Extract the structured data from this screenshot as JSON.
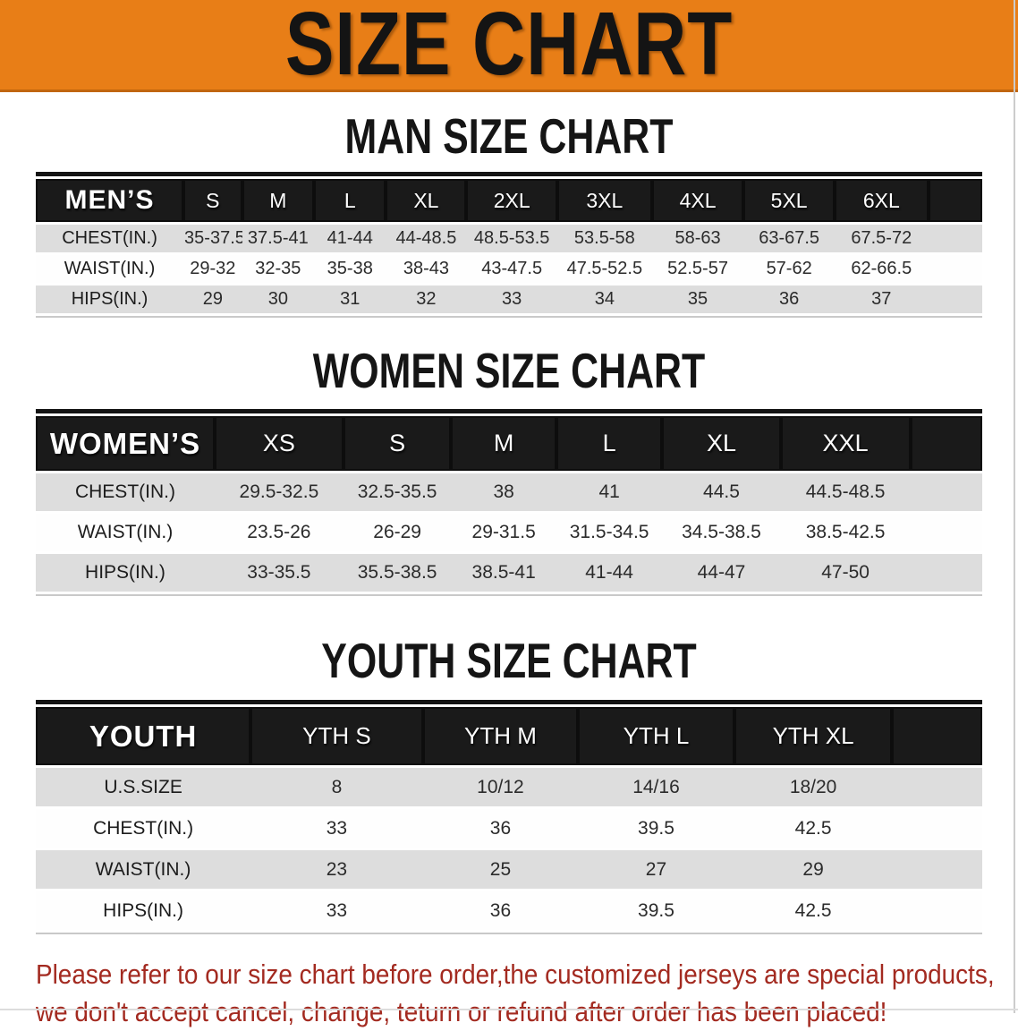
{
  "banner": {
    "title": "SIZE CHART"
  },
  "colors": {
    "banner_orange": "#E87E17",
    "header_black": "#1A1A1A",
    "row_gray": "#DDDDDD",
    "notice_red": "#A32A20"
  },
  "sections": [
    {
      "heading": "MAN SIZE CHART",
      "table": {
        "label": "MEN’S",
        "sizes": [
          "S",
          "M",
          "L",
          "XL",
          "2XL",
          "3XL",
          "4XL",
          "5XL",
          "6XL"
        ],
        "rows": [
          {
            "label": "CHEST(IN.)",
            "values": [
              "35-37.5",
              "37.5-41",
              "41-44",
              "44-48.5",
              "48.5-53.5",
              "53.5-58",
              "58-63",
              "63-67.5",
              "67.5-72"
            ]
          },
          {
            "label": "WAIST(IN.)",
            "values": [
              "29-32",
              "32-35",
              "35-38",
              "38-43",
              "43-47.5",
              "47.5-52.5",
              "52.5-57",
              "57-62",
              "62-66.5"
            ]
          },
          {
            "label": "HIPS(IN.)",
            "values": [
              "29",
              "30",
              "31",
              "32",
              "33",
              "34",
              "35",
              "36",
              "37"
            ]
          }
        ]
      }
    },
    {
      "heading": "WOMEN SIZE CHART",
      "table": {
        "label": "WOMEN’S",
        "sizes": [
          "XS",
          "S",
          "M",
          "L",
          "XL",
          "XXL"
        ],
        "rows": [
          {
            "label": "CHEST(IN.)",
            "values": [
              "29.5-32.5",
              "32.5-35.5",
              "38",
              "41",
              "44.5",
              "44.5-48.5"
            ]
          },
          {
            "label": "WAIST(IN.)",
            "values": [
              "23.5-26",
              "26-29",
              "29-31.5",
              "31.5-34.5",
              "34.5-38.5",
              "38.5-42.5"
            ]
          },
          {
            "label": "HIPS(IN.)",
            "values": [
              "33-35.5",
              "35.5-38.5",
              "38.5-41",
              "41-44",
              "44-47",
              "47-50"
            ]
          }
        ]
      }
    },
    {
      "heading": "YOUTH SIZE CHART",
      "table": {
        "label": "YOUTH",
        "sizes": [
          "YTH S",
          "YTH M",
          "YTH L",
          "YTH XL"
        ],
        "rows": [
          {
            "label": "U.S.SIZE",
            "values": [
              "8",
              "10/12",
              "14/16",
              "18/20"
            ]
          },
          {
            "label": "CHEST(IN.)",
            "values": [
              "33",
              "36",
              "39.5",
              "42.5"
            ]
          },
          {
            "label": "WAIST(IN.)",
            "values": [
              "23",
              "25",
              "27",
              "29"
            ]
          },
          {
            "label": "HIPS(IN.)",
            "values": [
              "33",
              "36",
              "39.5",
              "42.5"
            ]
          }
        ]
      }
    }
  ],
  "footer": {
    "line1": "Please refer to our size chart before order,the customized jerseys are special products,",
    "line2": "we don't accept cancel, change, teturn or refund after order has been placed!"
  }
}
